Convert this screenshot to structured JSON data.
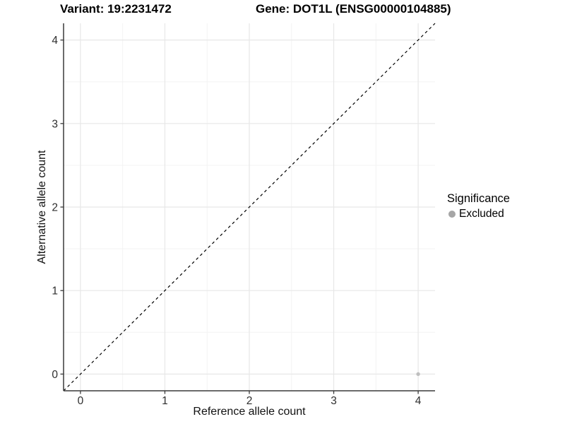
{
  "chart_data": {
    "type": "scatter",
    "variant_title": "Variant: 19:2231472",
    "gene_title": "Gene: DOT1L (ENSG00000104885)",
    "xlabel": "Reference allele count",
    "ylabel": "Alternative allele count",
    "xlim": [
      -0.2,
      4.2
    ],
    "ylim": [
      -0.2,
      4.2
    ],
    "x_ticks": [
      0,
      1,
      2,
      3,
      4
    ],
    "y_ticks": [
      0,
      1,
      2,
      3,
      4
    ],
    "x_minor": [
      0.5,
      1.5,
      2.5,
      3.5
    ],
    "y_minor": [
      0.5,
      1.5,
      2.5,
      3.5
    ],
    "grid": "major and minor, light gray on white",
    "points": [
      {
        "x": 4,
        "y": 0,
        "series": "Excluded"
      }
    ],
    "identity_line": {
      "style": "dashed",
      "from": [
        -0.2,
        -0.2
      ],
      "to": [
        4.2,
        4.2
      ],
      "color": "#000000"
    },
    "legend": {
      "title": "Significance",
      "position": "right",
      "entries": [
        {
          "label": "Excluded",
          "color": "#a6a6a6"
        }
      ]
    },
    "style": {
      "point_color": "#bfbfbf",
      "major_grid": "#e7e7e7",
      "minor_grid": "#f3f3f3",
      "axis_line": "#3a3a3a",
      "tick_color": "#3a3a3a",
      "tick_label_color": "#2e2e2e"
    }
  }
}
